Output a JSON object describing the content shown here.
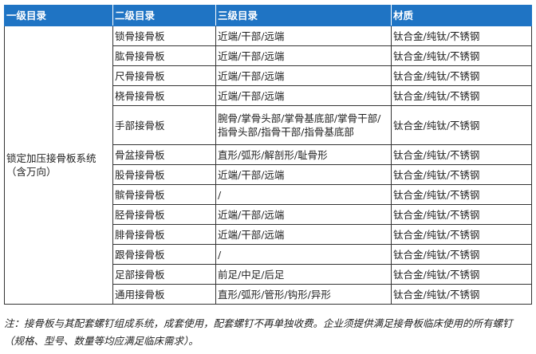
{
  "headers": [
    "一级目录",
    "二级目录",
    "三级目录",
    "材质"
  ],
  "level1": "锁定加压接骨板系统（含万向）",
  "rows": [
    {
      "l2": "锁骨接骨板",
      "l3": "近端/干部/远端",
      "material": "钛合金/纯钛/不锈钢"
    },
    {
      "l2": "肱骨接骨板",
      "l3": "近端/干部/远端",
      "material": "钛合金/纯钛/不锈钢"
    },
    {
      "l2": "尺骨接骨板",
      "l3": "近端/干部/远端",
      "material": "钛合金/纯钛/不锈钢"
    },
    {
      "l2": "桡骨接骨板",
      "l3": "近端/干部/远端",
      "material": "钛合金/纯钛/不锈钢"
    },
    {
      "l2": "手部接骨板",
      "l3": "腕骨/掌骨头部/掌骨基底部/掌骨干部/指骨头部/指骨干部/指骨基底部",
      "material": "钛合金/纯钛/不锈钢"
    },
    {
      "l2": "骨盆接骨板",
      "l3": "直形/弧形/解剖形/耻骨形",
      "material": "钛合金/纯钛/不锈钢"
    },
    {
      "l2": "股骨接骨板",
      "l3": "近端/干部/远端",
      "material": "钛合金/纯钛/不锈钢"
    },
    {
      "l2": "髌骨接骨板",
      "l3": "/",
      "material": "钛合金/纯钛/不锈钢"
    },
    {
      "l2": "胫骨接骨板",
      "l3": "近端/干部/远端",
      "material": "钛合金/纯钛/不锈钢"
    },
    {
      "l2": "腓骨接骨板",
      "l3": "近端/干部/远端",
      "material": "钛合金/纯钛/不锈钢"
    },
    {
      "l2": "跟骨接骨板",
      "l3": "/",
      "material": "钛合金/纯钛/不锈钢"
    },
    {
      "l2": "足部接骨板",
      "l3": "前足/中足/后足",
      "material": "钛合金/纯钛/不锈钢"
    },
    {
      "l2": "通用接骨板",
      "l3": "直形/弧形/管形/钩形/异形",
      "material": "钛合金/纯钛/不锈钢"
    }
  ],
  "note": "注：接骨板与其配套螺钉组成系统，成套使用，配套螺钉不再单独收费。企业须提供满足接骨板临床使用的所有螺钉（规格、型号、数量等均应满足临床需求）。"
}
